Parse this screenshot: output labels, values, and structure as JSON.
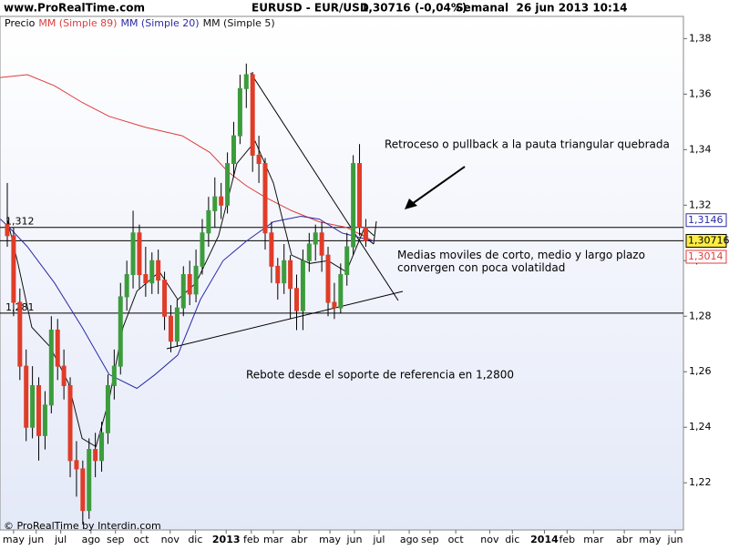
{
  "chart_data": {
    "type": "candlestick",
    "site": "www.ProRealTime.com",
    "title": "EURUSD - EUR/USD",
    "price": "1,30716 (-0,04%)",
    "subtitle": "Semanal  26 jun 2013 10:14",
    "legend_label": "Precio",
    "footer": "© ProRealTime by Interdin.com",
    "up_color": "#3c9c3c",
    "down_color": "#e03c28",
    "ohlc": {
      "open": [
        1.313,
        1.309,
        1.285,
        1.262,
        1.24,
        1.255,
        1.237,
        1.248,
        1.275,
        1.262,
        1.255,
        1.228,
        1.225,
        1.21,
        1.232,
        1.228,
        1.238,
        1.255,
        1.262,
        1.287,
        1.295,
        1.31,
        1.295,
        1.292,
        1.3,
        1.293,
        1.28,
        1.271,
        1.283,
        1.295,
        1.288,
        1.298,
        1.31,
        1.318,
        1.323,
        1.32,
        1.335,
        1.345,
        1.362,
        1.367,
        1.338,
        1.335,
        1.31,
        1.298,
        1.292,
        1.3,
        1.29,
        1.282,
        1.3,
        1.306,
        1.31,
        1.302,
        1.285,
        1.283,
        1.295,
        1.305,
        1.335,
        1.312
      ],
      "high": [
        1.328,
        1.312,
        1.29,
        1.268,
        1.262,
        1.258,
        1.253,
        1.28,
        1.279,
        1.268,
        1.258,
        1.235,
        1.228,
        1.236,
        1.238,
        1.242,
        1.259,
        1.268,
        1.292,
        1.3,
        1.318,
        1.313,
        1.305,
        1.303,
        1.304,
        1.296,
        1.284,
        1.286,
        1.298,
        1.3,
        1.304,
        1.315,
        1.323,
        1.33,
        1.328,
        1.339,
        1.35,
        1.367,
        1.371,
        1.368,
        1.345,
        1.337,
        1.314,
        1.301,
        1.306,
        1.302,
        1.295,
        1.304,
        1.31,
        1.313,
        1.314,
        1.305,
        1.292,
        1.299,
        1.31,
        1.338,
        1.342,
        1.315
      ],
      "low": [
        1.305,
        1.28,
        1.257,
        1.235,
        1.236,
        1.228,
        1.232,
        1.245,
        1.257,
        1.25,
        1.222,
        1.215,
        1.205,
        1.207,
        1.222,
        1.224,
        1.234,
        1.25,
        1.259,
        1.282,
        1.29,
        1.29,
        1.287,
        1.288,
        1.288,
        1.275,
        1.267,
        1.269,
        1.28,
        1.284,
        1.285,
        1.295,
        1.305,
        1.312,
        1.315,
        1.317,
        1.33,
        1.342,
        1.355,
        1.332,
        1.328,
        1.304,
        1.292,
        1.286,
        1.288,
        1.279,
        1.275,
        1.275,
        1.296,
        1.3,
        1.296,
        1.28,
        1.279,
        1.281,
        1.291,
        1.302,
        1.309,
        1.305
      ],
      "close": [
        1.309,
        1.285,
        1.262,
        1.24,
        1.255,
        1.237,
        1.248,
        1.275,
        1.262,
        1.255,
        1.228,
        1.225,
        1.21,
        1.232,
        1.228,
        1.238,
        1.255,
        1.262,
        1.287,
        1.295,
        1.31,
        1.295,
        1.292,
        1.3,
        1.293,
        1.28,
        1.271,
        1.283,
        1.295,
        1.288,
        1.298,
        1.31,
        1.318,
        1.323,
        1.32,
        1.335,
        1.345,
        1.362,
        1.367,
        1.338,
        1.335,
        1.31,
        1.298,
        1.292,
        1.3,
        1.29,
        1.282,
        1.3,
        1.306,
        1.31,
        1.302,
        1.285,
        1.283,
        1.295,
        1.305,
        1.335,
        1.312,
        1.3072
      ]
    },
    "series": [
      {
        "name": "MM (Simple 89)",
        "color": "#e03c3c",
        "x": [
          -1.1,
          3.2,
          7.5,
          11.9,
          16.2,
          22,
          27.8,
          32.2,
          35.1,
          38,
          40.9,
          45.2,
          49.6,
          53.9,
          58.3
        ],
        "values": [
          1.366,
          1.367,
          1.363,
          1.357,
          1.352,
          1.348,
          1.345,
          1.339,
          1.332,
          1.327,
          1.323,
          1.318,
          1.314,
          1.312,
          1.307
        ]
      },
      {
        "name": "MM (Simple 20)",
        "color": "#2a2aa8",
        "x": [
          -1.1,
          0.3,
          3.2,
          7.5,
          11.9,
          16.2,
          20.6,
          23.5,
          27.1,
          30.7,
          34.3,
          38,
          42.3,
          46.7,
          49.6,
          53.2,
          58.3
        ],
        "values": [
          1.315,
          1.312,
          1.305,
          1.292,
          1.276,
          1.259,
          1.254,
          1.259,
          1.266,
          1.286,
          1.3,
          1.307,
          1.314,
          1.316,
          1.315,
          1.31,
          1.307
        ]
      },
      {
        "name": "MM (Simple 5)",
        "color": "#111111",
        "x": [
          0,
          1.7,
          3.9,
          6.8,
          9.7,
          11.9,
          14.1,
          16.2,
          18.4,
          20.6,
          24.2,
          27.1,
          30,
          33.6,
          36.5,
          39.4,
          42.3,
          45.2,
          48.1,
          51,
          53.9,
          56.8,
          58.3
        ],
        "values": [
          1.315,
          1.299,
          1.276,
          1.269,
          1.256,
          1.236,
          1.233,
          1.25,
          1.276,
          1.289,
          1.296,
          1.286,
          1.292,
          1.309,
          1.335,
          1.343,
          1.328,
          1.302,
          1.299,
          1.3,
          1.296,
          1.312,
          1.309
        ]
      }
    ],
    "levels": [
      {
        "value": 1.312,
        "label": "1,312"
      },
      {
        "value": 1.2811,
        "label": "1,281"
      },
      {
        "value": 1.3072
      }
    ],
    "price_boxes": [
      {
        "value": 1.3146,
        "label": "1,3146",
        "color": "#2a2aa8",
        "bg": "#ffffff"
      },
      {
        "value": 1.30716,
        "label": "1,30716",
        "color": "#000000",
        "bg": "#ffee44"
      },
      {
        "value": 1.3014,
        "label": "1,3014",
        "color": "#e03c3c",
        "bg": "#ffffff"
      }
    ],
    "annotations": [
      "Retroceso o pullback a la pauta triangular quebrada",
      "Medias moviles de corto, medio y largo plazo convergen con poca volatildad",
      "Rebote desde el soporte de referencia en 1,2800"
    ],
    "xlim": [
      -1.16,
      107.5
    ],
    "xticks": [
      {
        "value": 1.0,
        "label": "may"
      },
      {
        "value": 4.6,
        "label": "jun"
      },
      {
        "value": 8.5,
        "label": "jul"
      },
      {
        "value": 13.3,
        "label": "ago"
      },
      {
        "value": 17.2,
        "label": "sep"
      },
      {
        "value": 21.3,
        "label": "oct"
      },
      {
        "value": 25.9,
        "label": "nov"
      },
      {
        "value": 29.9,
        "label": "dic"
      },
      {
        "value": 34.8,
        "label": "2013"
      },
      {
        "value": 38.8,
        "label": "feb"
      },
      {
        "value": 42.3,
        "label": "mar"
      },
      {
        "value": 46.4,
        "label": "abr"
      },
      {
        "value": 51.3,
        "label": "may"
      },
      {
        "value": 55.2,
        "label": "jun"
      },
      {
        "value": 59.1,
        "label": "jul"
      },
      {
        "value": 63.9,
        "label": "ago"
      },
      {
        "value": 67.2,
        "label": "sep"
      },
      {
        "value": 71.3,
        "label": "oct"
      },
      {
        "value": 76.7,
        "label": "nov"
      },
      {
        "value": 80.3,
        "label": "dic"
      },
      {
        "value": 85.4,
        "label": "2014"
      },
      {
        "value": 89.0,
        "label": "feb"
      },
      {
        "value": 93.2,
        "label": "mar"
      },
      {
        "value": 98.1,
        "label": "abr"
      },
      {
        "value": 102.2,
        "label": "may"
      },
      {
        "value": 106.2,
        "label": "jun"
      }
    ],
    "ylim": [
      1.203,
      1.388
    ],
    "yticks": [
      {
        "value": 1.22,
        "label": "1,22"
      },
      {
        "value": 1.24,
        "label": "1,24"
      },
      {
        "value": 1.26,
        "label": "1,26"
      },
      {
        "value": 1.28,
        "label": "1,28"
      },
      {
        "value": 1.3,
        "label": "1,30"
      },
      {
        "value": 1.32,
        "label": "1,32"
      },
      {
        "value": 1.34,
        "label": "1,34"
      },
      {
        "value": 1.36,
        "label": "1,36"
      },
      {
        "value": 1.38,
        "label": "1,38"
      }
    ]
  }
}
